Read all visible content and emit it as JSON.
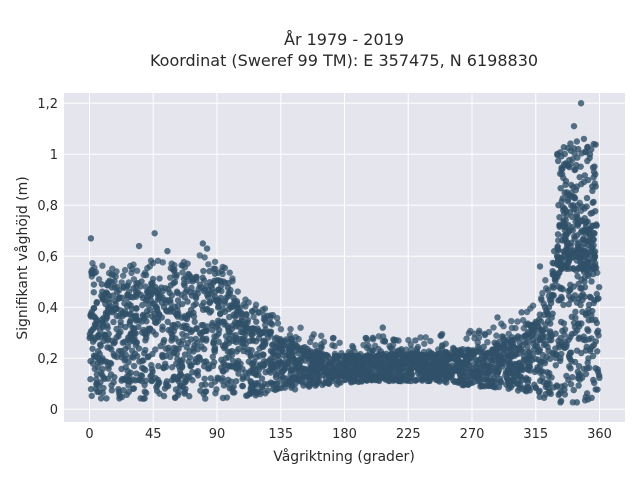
{
  "chart_data": {
    "type": "scatter",
    "title_line1": "År 1979 - 2019",
    "title_line2": "Koordinat (Sweref 99 TM): E 357475, N 6198830",
    "xlabel": "Vågriktning (grader)",
    "ylabel": "Signifikant våghöjd (m)",
    "xlim": [
      -18,
      378
    ],
    "ylim": [
      -0.05,
      1.24
    ],
    "xticks": [
      0,
      45,
      90,
      135,
      180,
      225,
      270,
      315,
      360
    ],
    "xtick_labels": [
      "0",
      "45",
      "90",
      "135",
      "180",
      "225",
      "270",
      "315",
      "360"
    ],
    "yticks": [
      0,
      0.2,
      0.4,
      0.6,
      0.8,
      1.0,
      1.2
    ],
    "ytick_labels": [
      "0",
      "0,2",
      "0,4",
      "0,6",
      "0,8",
      "1",
      "1,2"
    ],
    "grid": true,
    "marker_color": "#2f5068",
    "background": "#e5e5ee",
    "envelope": {
      "direction": [
        0,
        15,
        30,
        45,
        60,
        75,
        85,
        95,
        105,
        115,
        125,
        135,
        150,
        165,
        180,
        195,
        210,
        225,
        240,
        255,
        270,
        285,
        300,
        310,
        320,
        325,
        330,
        335,
        340,
        345,
        350,
        355,
        360
      ],
      "upper_height": [
        0.52,
        0.48,
        0.5,
        0.52,
        0.5,
        0.53,
        0.56,
        0.5,
        0.42,
        0.36,
        0.32,
        0.28,
        0.25,
        0.22,
        0.21,
        0.21,
        0.22,
        0.22,
        0.22,
        0.23,
        0.24,
        0.26,
        0.28,
        0.32,
        0.4,
        0.52,
        0.62,
        0.75,
        0.82,
        0.78,
        0.72,
        0.6,
        0.5
      ],
      "lower_height": [
        0.04,
        0.04,
        0.04,
        0.04,
        0.04,
        0.04,
        0.04,
        0.04,
        0.05,
        0.05,
        0.06,
        0.07,
        0.08,
        0.09,
        0.1,
        0.11,
        0.11,
        0.11,
        0.11,
        0.1,
        0.09,
        0.08,
        0.07,
        0.06,
        0.04,
        0.03,
        0.02,
        0.02,
        0.02,
        0.02,
        0.03,
        0.04,
        0.04
      ]
    },
    "notable_points": [
      {
        "x": 1,
        "y": 0.67
      },
      {
        "x": 46,
        "y": 0.69
      },
      {
        "x": 80,
        "y": 0.65
      },
      {
        "x": 83,
        "y": 0.63
      },
      {
        "x": 35,
        "y": 0.64
      },
      {
        "x": 55,
        "y": 0.62
      },
      {
        "x": 200,
        "y": 0.28
      },
      {
        "x": 207,
        "y": 0.32
      },
      {
        "x": 230,
        "y": 0.27
      },
      {
        "x": 288,
        "y": 0.36
      },
      {
        "x": 305,
        "y": 0.38
      },
      {
        "x": 342,
        "y": 1.11
      },
      {
        "x": 344,
        "y": 1.05
      },
      {
        "x": 345,
        "y": 1.02
      },
      {
        "x": 341,
        "y": 0.98
      },
      {
        "x": 343,
        "y": 0.94
      },
      {
        "x": 346,
        "y": 0.91
      },
      {
        "x": 347,
        "y": 1.2
      },
      {
        "x": 349,
        "y": 1.06
      },
      {
        "x": 336,
        "y": 0.88
      },
      {
        "x": 355,
        "y": 0.77
      },
      {
        "x": 358,
        "y": 0.72
      },
      {
        "x": 328,
        "y": 0.62
      },
      {
        "x": 318,
        "y": 0.56
      }
    ]
  }
}
